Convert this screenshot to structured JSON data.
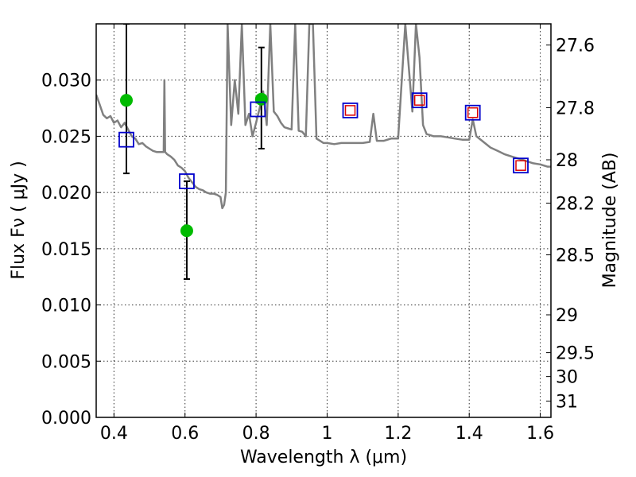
{
  "chart_data": {
    "type": "line",
    "xlabel": "Wavelength  λ (μm)",
    "ylabel": "Flux  Fν  ( μJy )",
    "ylabel_right": "Magnitude (AB)",
    "xlim": [
      0.35,
      1.63
    ],
    "ylim": [
      0.0,
      0.035
    ],
    "grid": true,
    "x_ticks": [
      {
        "value": 0.4,
        "label": "0.4"
      },
      {
        "value": 0.6,
        "label": "0.6"
      },
      {
        "value": 0.8,
        "label": "0.8"
      },
      {
        "value": 1.0,
        "label": "1"
      },
      {
        "value": 1.2,
        "label": "1.2"
      },
      {
        "value": 1.4,
        "label": "1.4"
      },
      {
        "value": 1.6,
        "label": "1.6"
      }
    ],
    "y_ticks": [
      {
        "value": 0.0,
        "label": "0.000"
      },
      {
        "value": 0.005,
        "label": "0.005"
      },
      {
        "value": 0.01,
        "label": "0.010"
      },
      {
        "value": 0.015,
        "label": "0.015"
      },
      {
        "value": 0.02,
        "label": "0.020"
      },
      {
        "value": 0.025,
        "label": "0.025"
      },
      {
        "value": 0.03,
        "label": "0.030"
      }
    ],
    "right_ticks": [
      {
        "value": 27.6,
        "label": "27.6"
      },
      {
        "value": 27.8,
        "label": "27.8"
      },
      {
        "value": 28.0,
        "label": "28"
      },
      {
        "value": 28.2,
        "label": "28.2"
      },
      {
        "value": 28.5,
        "label": "28.5"
      },
      {
        "value": 29.0,
        "label": "29"
      },
      {
        "value": 29.5,
        "label": "29.5"
      },
      {
        "value": 30.0,
        "label": "30"
      },
      {
        "value": 31.0,
        "label": "31"
      }
    ],
    "colors": {
      "sed": "#808080",
      "observed": "#00bb00",
      "model_box": "#0000cc",
      "model_inner": "#dd0000",
      "errorbar": "#000000"
    },
    "series": [
      {
        "kind": "sed_model",
        "x": [
          0.35,
          0.36,
          0.37,
          0.38,
          0.39,
          0.4,
          0.41,
          0.42,
          0.43,
          0.44,
          0.45,
          0.46,
          0.47,
          0.48,
          0.49,
          0.5,
          0.51,
          0.52,
          0.53,
          0.54,
          0.542,
          0.544,
          0.55,
          0.56,
          0.57,
          0.58,
          0.59,
          0.6,
          0.61,
          0.62,
          0.63,
          0.64,
          0.65,
          0.66,
          0.67,
          0.68,
          0.69,
          0.7,
          0.705,
          0.71,
          0.715,
          0.72,
          0.73,
          0.74,
          0.75,
          0.76,
          0.77,
          0.78,
          0.79,
          0.8,
          0.81,
          0.82,
          0.83,
          0.84,
          0.85,
          0.86,
          0.87,
          0.88,
          0.89,
          0.9,
          0.91,
          0.92,
          0.93,
          0.94,
          0.95,
          0.96,
          0.97,
          0.98,
          0.99,
          1.0,
          1.02,
          1.04,
          1.06,
          1.08,
          1.1,
          1.12,
          1.13,
          1.14,
          1.16,
          1.18,
          1.2,
          1.22,
          1.24,
          1.25,
          1.26,
          1.27,
          1.28,
          1.3,
          1.32,
          1.34,
          1.36,
          1.38,
          1.4,
          1.41,
          1.42,
          1.44,
          1.46,
          1.48,
          1.5,
          1.52,
          1.54,
          1.56,
          1.58,
          1.6,
          1.62,
          1.63
        ],
        "y": [
          0.0287,
          0.0278,
          0.0269,
          0.0266,
          0.0268,
          0.0262,
          0.0264,
          0.0258,
          0.0262,
          0.0256,
          0.025,
          0.0248,
          0.0243,
          0.0244,
          0.0241,
          0.0239,
          0.0237,
          0.0236,
          0.0236,
          0.0236,
          0.03,
          0.0236,
          0.0234,
          0.0232,
          0.0229,
          0.0224,
          0.0222,
          0.0219,
          0.0213,
          0.0209,
          0.0205,
          0.0203,
          0.0202,
          0.02,
          0.0199,
          0.0199,
          0.0198,
          0.0196,
          0.0186,
          0.0189,
          0.02,
          0.035,
          0.026,
          0.03,
          0.027,
          0.035,
          0.026,
          0.027,
          0.025,
          0.0262,
          0.0275,
          0.029,
          0.026,
          0.035,
          0.0272,
          0.0268,
          0.0262,
          0.0258,
          0.0257,
          0.0256,
          0.035,
          0.0255,
          0.0254,
          0.025,
          0.035,
          0.035,
          0.0248,
          0.0246,
          0.0244,
          0.0244,
          0.0243,
          0.0244,
          0.0244,
          0.0244,
          0.0244,
          0.0245,
          0.027,
          0.0246,
          0.0246,
          0.0248,
          0.0248,
          0.035,
          0.0272,
          0.035,
          0.032,
          0.026,
          0.0252,
          0.025,
          0.025,
          0.0249,
          0.0248,
          0.0247,
          0.0247,
          0.0265,
          0.025,
          0.0245,
          0.024,
          0.0237,
          0.0234,
          0.0232,
          0.023,
          0.0228,
          0.0226,
          0.0225,
          0.0223,
          0.0223
        ]
      },
      {
        "kind": "observed",
        "x": [
          0.435,
          0.605,
          0.815
        ],
        "y": [
          0.0282,
          0.0166,
          0.0283
        ],
        "yerr_low": [
          0.0217,
          0.0123,
          0.0239
        ],
        "yerr_high": [
          0.035,
          0.021,
          0.0329
        ]
      },
      {
        "kind": "model_photometry",
        "x": [
          0.435,
          0.605,
          0.805,
          1.065,
          1.26,
          1.41,
          1.545
        ],
        "y": [
          0.0247,
          0.021,
          0.0274,
          0.0273,
          0.0282,
          0.0271,
          0.0224
        ],
        "inner": [
          false,
          false,
          false,
          true,
          true,
          true,
          true
        ]
      }
    ]
  }
}
